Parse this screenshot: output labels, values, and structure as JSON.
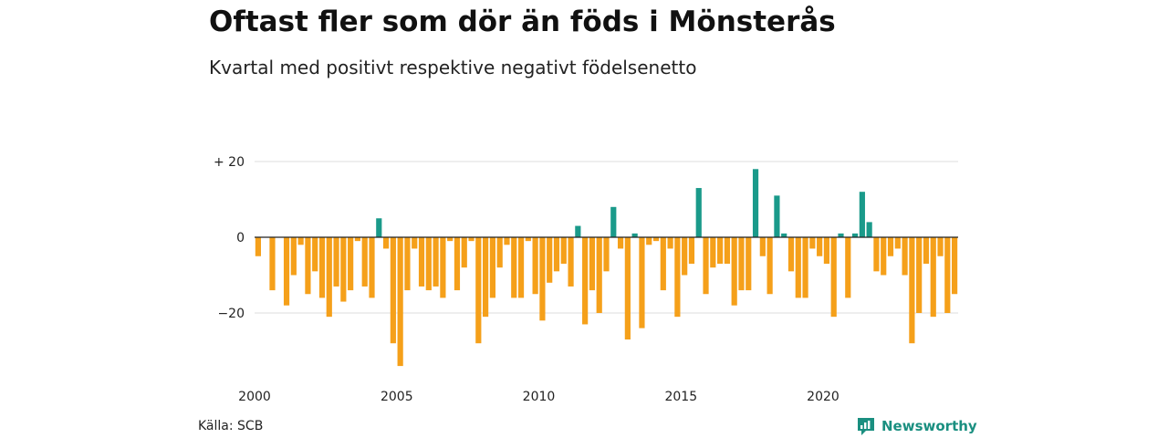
{
  "header": {
    "title": "Oftast fler som dör än föds i Mönsterås",
    "subtitle": "Kvartal med positivt respektive negativt födelsenetto"
  },
  "footer": {
    "source": "Källa: SCB",
    "brand": "Newsworthy"
  },
  "colors": {
    "positive": "#1a9a8a",
    "negative": "#f5a01a",
    "gridline": "#dddddd",
    "zeroline": "#222222",
    "brand": "#1a8f80"
  },
  "icons": {
    "brand_logo": "newsworthy-chart-bubble-icon"
  },
  "chart_data": {
    "type": "bar",
    "title": "Oftast fler som dör än föds i Mönsterås",
    "subtitle": "Kvartal med positivt respektive negativt födelsenetto",
    "xlabel": "",
    "ylabel": "",
    "x_start": "2000Q1",
    "period": "quarter",
    "y_ticks": [
      {
        "value": 20,
        "label": "+ 20"
      },
      {
        "value": 0,
        "label": "0"
      },
      {
        "value": -20,
        "label": "−20"
      }
    ],
    "x_ticks": [
      "2000",
      "2005",
      "2010",
      "2015",
      "2020"
    ],
    "ylim": [
      -35,
      20
    ],
    "grid": true,
    "values": [
      -5,
      0,
      -14,
      0,
      -18,
      -10,
      -2,
      -15,
      -9,
      -16,
      -21,
      -13,
      -17,
      -14,
      -1,
      -13,
      -16,
      5,
      -3,
      -28,
      -34,
      -14,
      -3,
      -13,
      -14,
      -13,
      -16,
      -1,
      -14,
      -8,
      -1,
      -28,
      -21,
      -16,
      -8,
      -2,
      -16,
      -16,
      -1,
      -15,
      -22,
      -12,
      -9,
      -7,
      -13,
      3,
      -23,
      -14,
      -20,
      -9,
      8,
      -3,
      -27,
      1,
      -24,
      -2,
      -1,
      -14,
      -3,
      -21,
      -10,
      -7,
      13,
      -15,
      -8,
      -7,
      -7,
      -18,
      -14,
      -14,
      18,
      -5,
      -15,
      11,
      1,
      -9,
      -16,
      -16,
      -3,
      -5,
      -7,
      -21,
      1,
      -16,
      1,
      12,
      4,
      -9,
      -10,
      -5,
      -3,
      -10,
      -28,
      -20,
      -7,
      -21,
      -5,
      -20,
      -15
    ]
  }
}
